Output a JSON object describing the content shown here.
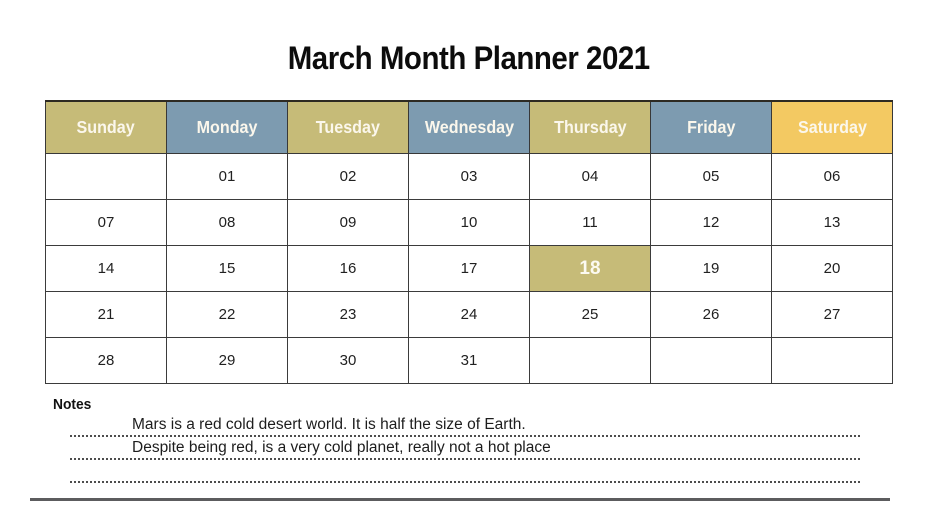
{
  "title": "March Month Planner 2021",
  "calendar": {
    "day_headers": [
      {
        "label": "Sunday",
        "color": "#c6bb78"
      },
      {
        "label": "Monday",
        "color": "#7d9bb0"
      },
      {
        "label": "Tuesday",
        "color": "#c6bb78"
      },
      {
        "label": "Wednesday",
        "color": "#7d9bb0"
      },
      {
        "label": "Thursday",
        "color": "#c6bb78"
      },
      {
        "label": "Friday",
        "color": "#7d9bb0"
      },
      {
        "label": "Saturday",
        "color": "#f3c962"
      }
    ],
    "weeks": [
      [
        "",
        "01",
        "02",
        "03",
        "04",
        "05",
        "06"
      ],
      [
        "07",
        "08",
        "09",
        "10",
        "11",
        "12",
        "13"
      ],
      [
        "14",
        "15",
        "16",
        "17",
        "18",
        "19",
        "20"
      ],
      [
        "21",
        "22",
        "23",
        "24",
        "25",
        "26",
        "27"
      ],
      [
        "28",
        "29",
        "30",
        "31",
        "",
        "",
        ""
      ]
    ],
    "highlighted_date": "18",
    "highlight_color": "#c6bb78"
  },
  "notes": {
    "heading": "Notes",
    "lines": [
      "Mars is a red cold desert world. It is half the size of Earth.",
      "Despite being red, is a very cold planet, really not a hot place",
      ""
    ]
  },
  "colors": {
    "header_text": "#fbf7ec",
    "grid_border": "#3b3b3b",
    "divider": "#5c5c5e"
  }
}
